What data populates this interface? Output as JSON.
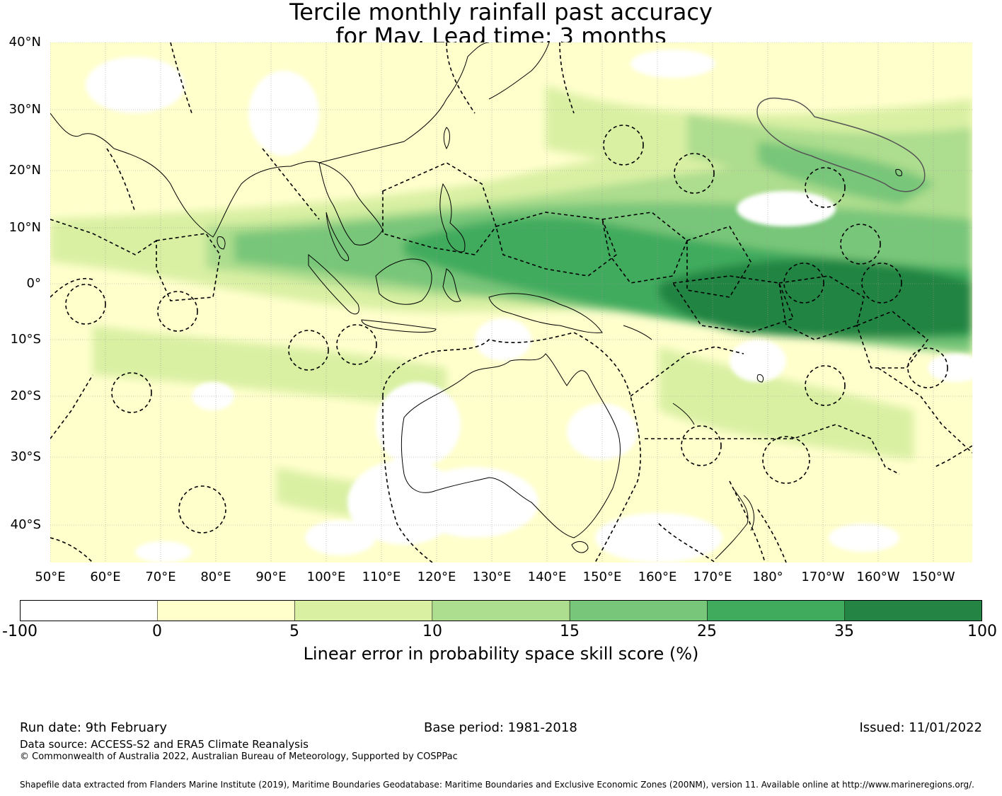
{
  "title": {
    "line1": "Tercile monthly rainfall past accuracy",
    "line2": "for May. Lead time: 3 months"
  },
  "map": {
    "lat_labels": [
      "40°N",
      "30°N",
      "20°N",
      "10°N",
      "0°",
      "10°S",
      "20°S",
      "30°S",
      "40°S"
    ],
    "lon_labels": [
      "50°E",
      "60°E",
      "70°E",
      "80°E",
      "90°E",
      "100°E",
      "110°E",
      "120°E",
      "130°E",
      "140°E",
      "150°E",
      "160°E",
      "170°E",
      "180°",
      "170°W",
      "160°W",
      "150°W"
    ],
    "layers": {
      "skill_field": "LEPS skill score shading",
      "coastlines": "coastline outlines",
      "eez_boundaries": "dashed maritime boundaries (EEZ)",
      "highlight_region": "grey outlined Hawaii EEZ"
    }
  },
  "colorbar": {
    "ticks": [
      "-100",
      "0",
      "5",
      "10",
      "15",
      "25",
      "35",
      "100"
    ],
    "colors": [
      "#ffffff",
      "#ffffcc",
      "#d9f0a3",
      "#addd8e",
      "#78c679",
      "#41ab5d",
      "#238443"
    ],
    "label": "Linear error in probability space skill score (%)"
  },
  "footer": {
    "run_date": "Run date: 9th February",
    "base_period": "Base period: 1981-2018",
    "issued": "Issued: 11/01/2022",
    "data_source": "Data source: ACCESS-S2 and ERA5 Climate Reanalysis",
    "copyright": "© Commonwealth of Australia 2022, Australian Bureau of Meteorology, Supported by COSPPac",
    "shapefile": "Shapefile data extracted from Flanders Marine Institute (2019), Maritime Boundaries Geodatabase: Maritime Boundaries and Exclusive Economic Zones (200NM), version 11. Available online at http://www.marineregions.org/."
  }
}
